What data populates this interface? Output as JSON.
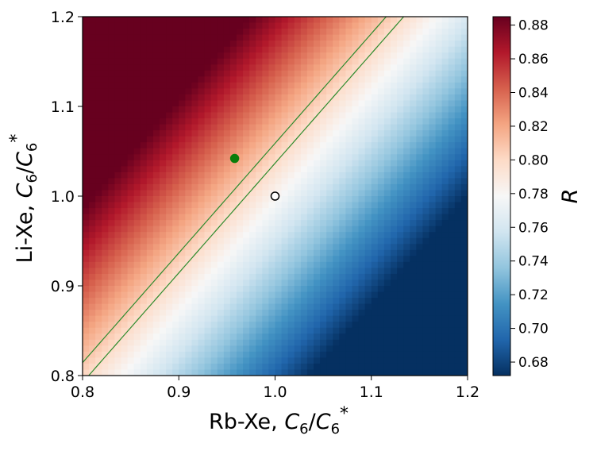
{
  "chart_data": {
    "type": "heatmap",
    "title": "",
    "xlabel": {
      "prefix": "Rb-Xe, ",
      "var": "C",
      "sub": "6",
      "slash": "/",
      "var2": "C",
      "sub2": "6",
      "sup2": "*"
    },
    "ylabel": {
      "prefix": "Li-Xe, ",
      "var": "C",
      "sub": "6",
      "slash": "/",
      "var2": "C",
      "sub2": "6",
      "sup2": "*"
    },
    "xlim": [
      0.8,
      1.2
    ],
    "ylim": [
      0.8,
      1.2
    ],
    "x_ticks": [
      "0.8",
      "0.9",
      "1.0",
      "1.1",
      "1.2"
    ],
    "y_ticks": [
      "0.8",
      "0.9",
      "1.0",
      "1.1",
      "1.2"
    ],
    "colorbar": {
      "label": "R",
      "colormap": "RdBu_r",
      "range": [
        0.672,
        0.885
      ],
      "ticks": [
        "0.68",
        "0.70",
        "0.72",
        "0.74",
        "0.76",
        "0.78",
        "0.80",
        "0.82",
        "0.84",
        "0.86",
        "0.88"
      ]
    },
    "field_model": {
      "a": 0.7815,
      "bx": -0.55,
      "by": 0.45
    },
    "contours": [
      {
        "name": "contour-upper",
        "level": 0.808,
        "color": "#2e8b2e"
      },
      {
        "name": "contour-lower",
        "level": 0.798,
        "color": "#2e8b2e"
      }
    ],
    "markers": [
      {
        "name": "green-point",
        "x": 0.958,
        "y": 1.042,
        "fill": "#0a7d0a",
        "edge": "#0a7d0a"
      },
      {
        "name": "open-point",
        "x": 1.0,
        "y": 1.0,
        "fill": "#ffffff",
        "edge": "#000000"
      }
    ]
  }
}
